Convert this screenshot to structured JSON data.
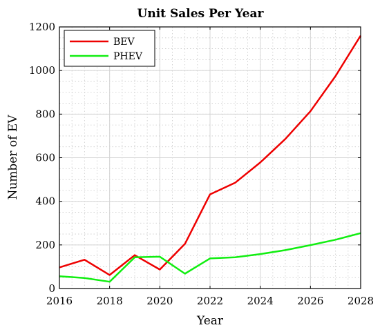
{
  "chart_data": {
    "type": "line",
    "title": "Unit Sales Per Year",
    "xlabel": "Year",
    "ylabel": "Number of EV",
    "x": [
      2016,
      2017,
      2018,
      2019,
      2020,
      2021,
      2022,
      2023,
      2024,
      2025,
      2026,
      2027,
      2028
    ],
    "xlim": [
      2016,
      2028
    ],
    "ylim": [
      0,
      1200
    ],
    "xticks": [
      2016,
      2018,
      2020,
      2022,
      2024,
      2026,
      2028
    ],
    "yticks": [
      0,
      200,
      400,
      600,
      800,
      1000,
      1200
    ],
    "grid": true,
    "minor_grid": true,
    "legend_position": "top-left",
    "series": [
      {
        "name": "BEV",
        "color": "#ee0000",
        "values": [
          97,
          132,
          62,
          153,
          87,
          205,
          432,
          485,
          578,
          686,
          813,
          975,
          1160
        ]
      },
      {
        "name": "PHEV",
        "color": "#11ee11",
        "values": [
          56,
          48,
          31,
          143,
          146,
          68,
          138,
          143,
          158,
          176,
          199,
          224,
          254
        ]
      }
    ]
  }
}
